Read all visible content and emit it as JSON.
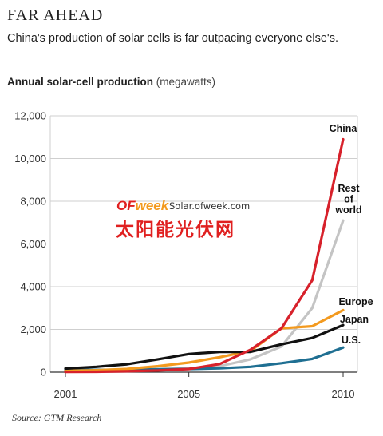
{
  "header": {
    "title": "FAR AHEAD",
    "subtitle": "China's production of solar cells is far outpacing everyone else's."
  },
  "chart_heading": {
    "label": "Annual solar-cell production",
    "unit": "(megawatts)"
  },
  "source": "Source: GTM Research",
  "watermark": {
    "logo_of": "OF",
    "logo_week": "week",
    "url": "Solar.ofweek.com",
    "chinese": "太阳能光伏网"
  },
  "chart_data": {
    "type": "line",
    "title": "Annual solar-cell production",
    "ylabel": "(megawatts)",
    "xlabel": "",
    "xlim": [
      2001,
      2010
    ],
    "ylim": [
      0,
      12000
    ],
    "x": [
      2001,
      2002,
      2003,
      2004,
      2005,
      2006,
      2007,
      2008,
      2009,
      2010
    ],
    "x_ticks": [
      2001,
      2005,
      2010
    ],
    "x_tick_labels": [
      "2001",
      "2005",
      "2010"
    ],
    "y_ticks": [
      0,
      2000,
      4000,
      6000,
      8000,
      10000,
      12000
    ],
    "y_tick_labels": [
      "0",
      "2,000",
      "4,000",
      "6,000",
      "8,000",
      "10,000",
      "12,000"
    ],
    "grid": "horizontal",
    "series": [
      {
        "name": "China",
        "label_lines": [
          "China"
        ],
        "color": "#d7212b",
        "values": [
          10,
          20,
          40,
          80,
          150,
          380,
          1050,
          2050,
          4300,
          10900
        ]
      },
      {
        "name": "Rest of world",
        "label_lines": [
          "Rest",
          "of",
          "world"
        ],
        "color": "#c4c4c4",
        "values": [
          70,
          80,
          100,
          130,
          180,
          280,
          600,
          1200,
          3000,
          7100
        ]
      },
      {
        "name": "Europe",
        "label_lines": [
          "Europe"
        ],
        "color": "#f39a1f",
        "values": [
          60,
          90,
          150,
          280,
          450,
          700,
          1000,
          2050,
          2150,
          2900
        ]
      },
      {
        "name": "Japan",
        "label_lines": [
          "Japan"
        ],
        "color": "#111111",
        "values": [
          170,
          250,
          370,
          600,
          850,
          950,
          950,
          1300,
          1600,
          2200
        ]
      },
      {
        "name": "U.S.",
        "label_lines": [
          "U.S."
        ],
        "color": "#1f6f92",
        "values": [
          100,
          110,
          120,
          140,
          150,
          180,
          250,
          420,
          620,
          1150
        ]
      }
    ]
  }
}
